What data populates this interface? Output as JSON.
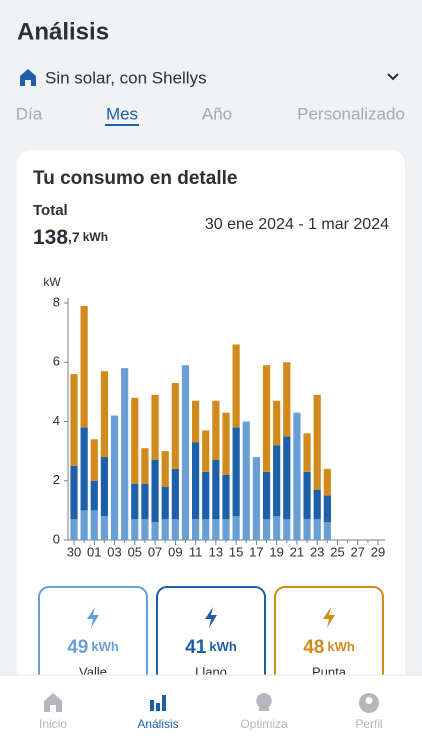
{
  "header": {
    "title": "Análisis",
    "location": "Sin solar, con Shellys"
  },
  "tabs": [
    "Día",
    "Mes",
    "Año",
    "Personalizado"
  ],
  "active_tab": 1,
  "card": {
    "title": "Tu consumo en detalle",
    "total_label": "Total",
    "total_integer": "138",
    "total_decimal": ",7",
    "total_unit": "kWh",
    "date_range": "30 ene 2024 - 1 mar 2024"
  },
  "chart_data": {
    "type": "bar",
    "stacked": true,
    "y_label": "kW",
    "categories": [
      "30",
      null,
      "01",
      null,
      "03",
      null,
      "05",
      null,
      "07",
      null,
      "09",
      null,
      "11",
      null,
      "13",
      null,
      "15",
      null,
      "17",
      null,
      "19",
      null,
      "21",
      null,
      "23",
      null,
      "25",
      null,
      "27",
      null,
      "29"
    ],
    "series": [
      {
        "name": "Valle",
        "color": "#6a9fd6",
        "values": [
          0.7,
          1.0,
          1.0,
          0.8,
          4.2,
          5.8,
          0.7,
          0.7,
          0.6,
          0.7,
          0.7,
          5.9,
          0.7,
          0.7,
          0.7,
          0.7,
          0.8,
          4.0,
          2.8,
          0.7,
          0.8,
          0.7,
          4.3,
          0.7,
          0.7,
          0.6,
          null,
          null,
          null,
          null,
          null
        ]
      },
      {
        "name": "Llano",
        "color": "#1d5fa8",
        "values": [
          1.8,
          2.8,
          1.0,
          2.0,
          0,
          0,
          1.2,
          1.2,
          2.1,
          1.1,
          1.7,
          0,
          2.6,
          1.6,
          2.0,
          1.5,
          3.0,
          0,
          0,
          1.6,
          2.4,
          2.8,
          0,
          1.6,
          1.0,
          0.9,
          null,
          null,
          null,
          null,
          null
        ]
      },
      {
        "name": "Punta",
        "color": "#d18b1c",
        "values": [
          3.1,
          4.1,
          1.4,
          2.9,
          0,
          0,
          2.9,
          1.2,
          2.2,
          1.2,
          2.9,
          0,
          1.4,
          1.4,
          2.0,
          2.1,
          2.8,
          0,
          0,
          3.6,
          1.5,
          2.5,
          0,
          1.3,
          3.2,
          0.9,
          null,
          null,
          null,
          null,
          null
        ]
      }
    ],
    "ylim": [
      0,
      8
    ],
    "yticks": [
      0,
      2,
      4,
      6,
      8
    ],
    "grid": false
  },
  "summary": [
    {
      "value": 49,
      "unit": "kWh"
    },
    {
      "value": 41,
      "unit": "kWh"
    },
    {
      "value": 48,
      "unit": "kWh"
    }
  ],
  "nav": [
    "Inicio",
    "Análisis",
    "Optimiza",
    "Perfil"
  ],
  "active_nav": 1
}
